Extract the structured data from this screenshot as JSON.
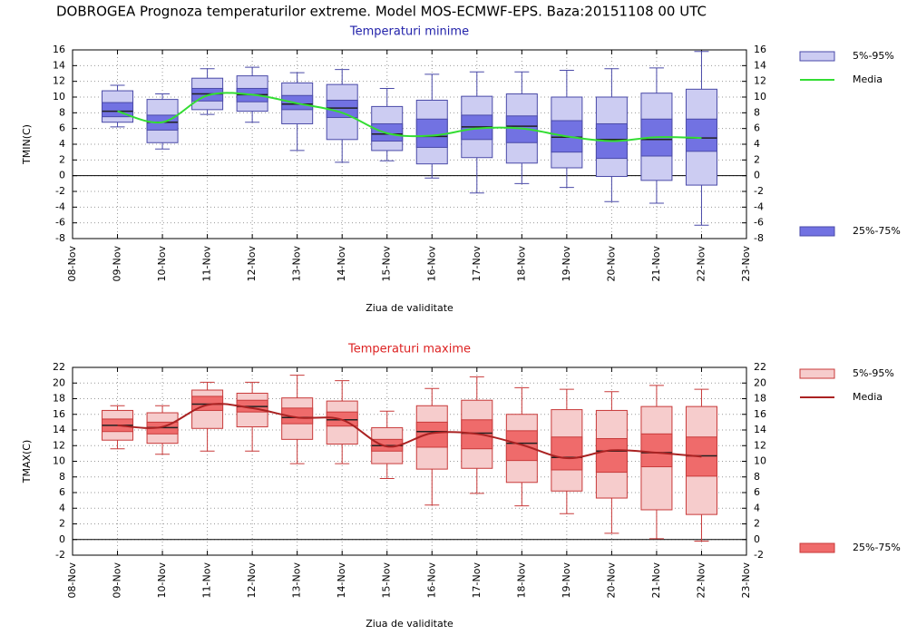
{
  "title": "DOBROGEA  Prognoza temperaturilor extreme.  Model MOS-ECMWF-EPS. Baza:20151108 00 UTC",
  "chart_data": [
    {
      "type": "box",
      "title": "Temperaturi minime",
      "title_color": "#2222aa",
      "ylabel": "TMIN(C)",
      "xlabel": "Ziua de validitate",
      "categories": [
        "08-Nov",
        "09-Nov",
        "10-Nov",
        "11-Nov",
        "12-Nov",
        "13-Nov",
        "14-Nov",
        "15-Nov",
        "16-Nov",
        "17-Nov",
        "18-Nov",
        "19-Nov",
        "20-Nov",
        "21-Nov",
        "22-Nov",
        "23-Nov"
      ],
      "ylim": [
        -8,
        16
      ],
      "yticks": [
        -8,
        -6,
        -4,
        -2,
        0,
        2,
        4,
        6,
        8,
        10,
        12,
        14,
        16
      ],
      "grid": true,
      "edge_color": "#4a4aa8",
      "min": [
        null,
        6.2,
        3.4,
        7.8,
        6.8,
        3.2,
        1.7,
        1.9,
        -0.3,
        -2.2,
        -1.0,
        -1.5,
        -3.3,
        -3.5,
        -6.3,
        null
      ],
      "median": [
        null,
        8.2,
        6.8,
        10.4,
        10.3,
        9.1,
        8.6,
        5.3,
        5.0,
        6.2,
        6.3,
        4.9,
        4.6,
        4.6,
        4.8,
        null
      ],
      "max": [
        null,
        11.5,
        10.4,
        13.6,
        13.8,
        13.1,
        13.5,
        11.1,
        12.9,
        13.2,
        13.2,
        13.4,
        13.6,
        13.7,
        15.8,
        null
      ],
      "series": [
        {
          "name": "5%-95%",
          "color": "#ccccf2",
          "low": [
            null,
            6.8,
            4.2,
            8.4,
            8.2,
            6.6,
            4.6,
            3.2,
            1.5,
            2.3,
            1.6,
            1.0,
            -0.1,
            -0.6,
            -1.2,
            null
          ],
          "high": [
            null,
            10.8,
            9.7,
            12.4,
            12.7,
            11.8,
            11.6,
            8.8,
            9.6,
            10.1,
            10.4,
            10.0,
            10.0,
            10.5,
            11.0,
            null
          ]
        },
        {
          "name": "Media",
          "color": "#33dd33",
          "values": [
            null,
            8.2,
            6.8,
            10.2,
            10.3,
            9.2,
            8.0,
            5.4,
            5.1,
            6.0,
            6.0,
            5.0,
            4.4,
            4.9,
            4.8,
            null
          ]
        },
        {
          "name": "25%-75%",
          "color": "#7272e2",
          "low": [
            null,
            7.5,
            5.8,
            9.5,
            9.4,
            8.4,
            7.4,
            4.4,
            3.6,
            4.6,
            4.2,
            3.0,
            2.2,
            2.5,
            3.1,
            null
          ],
          "high": [
            null,
            9.3,
            7.7,
            11.1,
            11.1,
            10.2,
            9.6,
            6.6,
            7.2,
            7.7,
            7.6,
            7.0,
            6.6,
            7.2,
            7.2,
            null
          ]
        }
      ]
    },
    {
      "type": "box",
      "title": "Temperaturi maxime",
      "title_color": "#dd2222",
      "ylabel": "TMAX(C)",
      "xlabel": "Ziua de validitate",
      "categories": [
        "08-Nov",
        "09-Nov",
        "10-Nov",
        "11-Nov",
        "12-Nov",
        "13-Nov",
        "14-Nov",
        "15-Nov",
        "16-Nov",
        "17-Nov",
        "18-Nov",
        "19-Nov",
        "20-Nov",
        "21-Nov",
        "22-Nov",
        "23-Nov"
      ],
      "ylim": [
        -2,
        22
      ],
      "yticks": [
        -2,
        0,
        2,
        4,
        6,
        8,
        10,
        12,
        14,
        16,
        18,
        20,
        22
      ],
      "grid": true,
      "edge_color": "#c83a3a",
      "min": [
        null,
        11.6,
        10.9,
        11.3,
        11.3,
        9.7,
        9.7,
        7.8,
        4.4,
        5.9,
        4.3,
        3.3,
        0.8,
        0.1,
        -0.2,
        null
      ],
      "median": [
        null,
        14.6,
        14.3,
        17.3,
        17.0,
        15.6,
        15.3,
        12.0,
        13.8,
        13.6,
        12.3,
        10.5,
        11.3,
        11.1,
        10.7,
        null
      ],
      "max": [
        null,
        17.1,
        17.1,
        20.1,
        20.1,
        21.0,
        20.3,
        16.4,
        19.3,
        20.8,
        19.4,
        19.2,
        18.9,
        19.7,
        19.2,
        null
      ],
      "series": [
        {
          "name": "5%-95%",
          "color": "#f6cccc",
          "low": [
            null,
            12.7,
            12.3,
            14.2,
            14.4,
            12.8,
            12.2,
            9.7,
            9.0,
            9.1,
            7.3,
            6.2,
            5.3,
            3.8,
            3.2,
            null
          ],
          "high": [
            null,
            16.5,
            16.2,
            19.1,
            18.7,
            18.1,
            17.7,
            14.3,
            17.1,
            17.8,
            16.0,
            16.6,
            16.5,
            17.0,
            17.0,
            null
          ]
        },
        {
          "name": "Media",
          "color": "#aa2222",
          "values": [
            null,
            14.6,
            14.4,
            17.2,
            16.8,
            15.6,
            15.3,
            11.9,
            13.6,
            13.5,
            12.1,
            10.4,
            11.4,
            11.1,
            10.6,
            null
          ]
        },
        {
          "name": "25%-75%",
          "color": "#ef6b6b",
          "low": [
            null,
            13.8,
            13.5,
            16.5,
            16.3,
            14.8,
            14.5,
            11.3,
            11.8,
            11.6,
            10.1,
            8.9,
            8.6,
            9.3,
            8.1,
            null
          ],
          "high": [
            null,
            15.4,
            15.0,
            18.3,
            17.8,
            16.8,
            16.3,
            12.8,
            15.0,
            15.3,
            13.9,
            13.1,
            12.9,
            13.5,
            13.1,
            null
          ]
        }
      ]
    }
  ]
}
